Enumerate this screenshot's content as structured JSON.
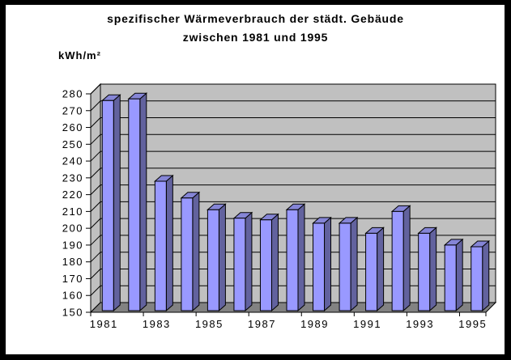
{
  "title": {
    "line1": "spezifischer Wärmeverbrauch der städt. Gebäude",
    "line2": "zwischen 1981 und 1995"
  },
  "y_unit_label": "kWh/m²",
  "chart_data": {
    "type": "bar",
    "style": "3d-column",
    "title": "spezifischer Wärmeverbrauch der städt. Gebäude zwischen 1981 und 1995",
    "xlabel": "",
    "ylabel": "kWh/m²",
    "categories": [
      "1981",
      "1982",
      "1983",
      "1984",
      "1985",
      "1986",
      "1987",
      "1988",
      "1989",
      "1990",
      "1991",
      "1992",
      "1993",
      "1994",
      "1995"
    ],
    "values": [
      276,
      277,
      228,
      218,
      211,
      206,
      205,
      211,
      203,
      203,
      197,
      210,
      197,
      190,
      189
    ],
    "x_tick_labels": [
      "1981",
      "1983",
      "1985",
      "1987",
      "1989",
      "1991",
      "1993",
      "1995"
    ],
    "y_ticks": [
      150,
      160,
      170,
      180,
      190,
      200,
      210,
      220,
      230,
      240,
      250,
      260,
      270,
      280
    ],
    "ylim": [
      150,
      280
    ],
    "y_tick_step": 10,
    "grid": true,
    "legend": false,
    "colors": {
      "bar_front": "#9999FF",
      "bar_side": "#62629E",
      "bar_top": "#8585D6",
      "wall": "#C0C0C0",
      "floor": "#828282",
      "gridline": "#000000",
      "axis": "#000000",
      "text": "#000000",
      "background": "#FFFFFF",
      "frame_border": "#000000"
    }
  }
}
